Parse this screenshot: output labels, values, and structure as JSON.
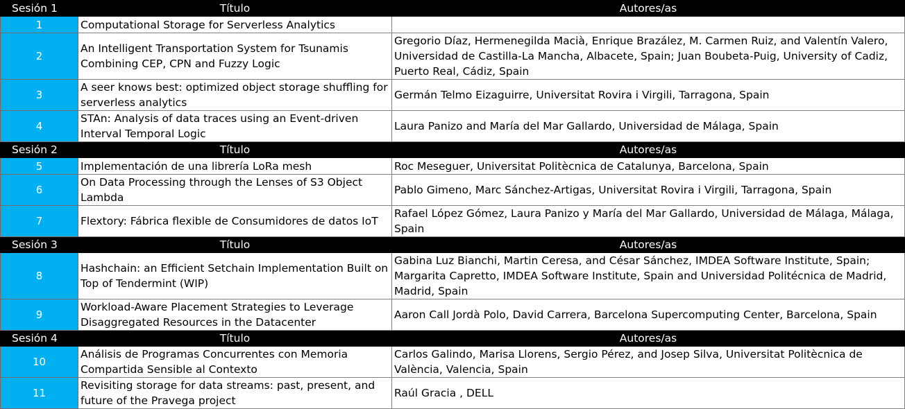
{
  "sessions": [
    {
      "label": "Sesión 1",
      "title_header": "Título",
      "authors_header": "Autores/as",
      "rows": [
        {
          "num": "1",
          "title": "Computational Storage for Serverless Analytics",
          "authors": ""
        },
        {
          "num": "2",
          "title": "An Intelligent Transportation System for Tsunamis Combining CEP, CPN and Fuzzy Logic",
          "authors": "Gregorio Díaz, Hermenegilda Macià, Enrique Brazález, M. Carmen Ruiz, and Valentín Valero, Universidad de Castilla-La Mancha, Albacete, Spain; Juan Boubeta-Puig, University of Cadiz, Puerto Real, Cádiz, Spain"
        },
        {
          "num": "3",
          "title": "A seer knows best: optimized object storage shuffling for serverless analytics",
          "authors": "Germán Telmo Eizaguirre, Universitat Rovira i Virgili, Tarragona, Spain"
        },
        {
          "num": "4",
          "title": "STAn: Analysis of data traces using an Event-driven Interval Temporal Logic",
          "authors": "Laura Panizo and María del Mar Gallardo, Universidad de Málaga, Spain"
        }
      ]
    },
    {
      "label": "Sesión 2",
      "title_header": "Título",
      "authors_header": "Autores/as",
      "rows": [
        {
          "num": "5",
          "title": "Implementación de una librería LoRa mesh",
          "authors": "Roc Meseguer, Universitat Politècnica de Catalunya, Barcelona, Spain"
        },
        {
          "num": "6",
          "title": "On Data Processing through the Lenses of S3 Object Lambda",
          "authors": "Pablo Gimeno, Marc Sánchez-Artigas, Universitat Rovira i Virgili, Tarragona, Spain"
        },
        {
          "num": "7",
          "title": "Flextory: Fábrica flexible de Consumidores de datos IoT",
          "authors": "Rafael López Gómez, Laura Panizo y María del Mar Gallardo, Universidad de Málaga, Málaga, Spain"
        }
      ]
    },
    {
      "label": "Sesión 3",
      "title_header": "Título",
      "authors_header": "Autores/as",
      "rows": [
        {
          "num": "8",
          "title": "Hashchain: an Efficient Setchain Implementation Built on Top of Tendermint (WIP)",
          "authors": "Gabina Luz Bianchi,  Martin Ceresa, and César Sánchez, IMDEA Software Institute, Spain; Margarita Capretto, IMDEA Software Institute, Spain and Universidad Politécnica de Madrid, Madrid, Spain"
        },
        {
          "num": "9",
          "title": "Workload-Aware Placement Strategies to Leverage Disaggregated Resources in the Datacenter",
          "authors": "Aaron Call Jordà Polo, David Carrera, Barcelona Supercomputing Center, Barcelona, Spain"
        }
      ]
    },
    {
      "label": "Sesión 4",
      "title_header": "Título",
      "authors_header": "Autores/as",
      "rows": [
        {
          "num": "10",
          "title": "Análisis de Programas Concurrentes con Memoria Compartida Sensible al Contexto",
          "authors": "Carlos Galindo, Marisa Llorens, Sergio Pérez, and Josep Silva, Universitat Politècnica de València, Valencia, Spain"
        },
        {
          "num": "11",
          "title": "Revisiting storage for data streams: past, present, and future of the Pravega project",
          "authors": "Raúl Gracia , DELL"
        }
      ]
    }
  ],
  "colors": {
    "header_bg": "#000000",
    "number_bg": "#00b0f0",
    "border": "#7f7f7f"
  }
}
